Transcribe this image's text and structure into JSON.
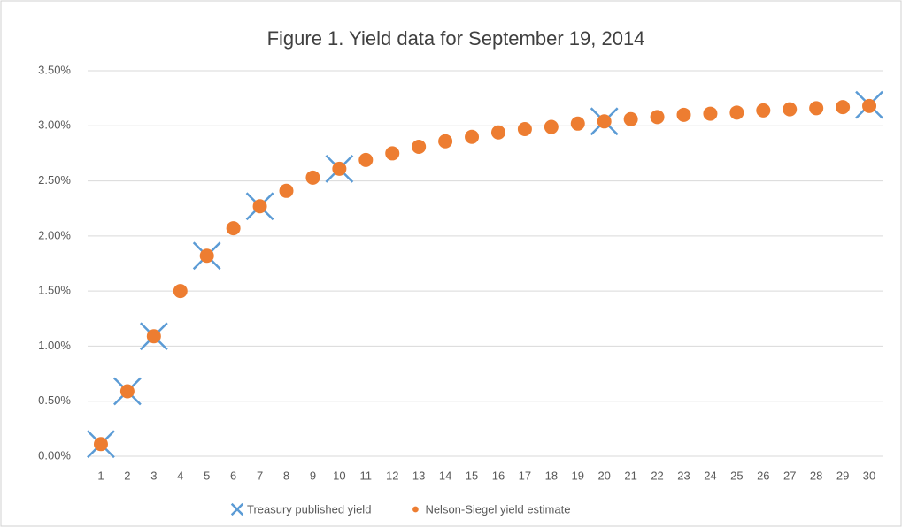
{
  "chart_data": {
    "type": "scatter",
    "title": "Figure 1. Yield data for September 19, 2014",
    "categories": [
      "1",
      "2",
      "3",
      "4",
      "5",
      "6",
      "7",
      "8",
      "9",
      "10",
      "11",
      "12",
      "13",
      "14",
      "15",
      "16",
      "17",
      "18",
      "19",
      "20",
      "21",
      "22",
      "23",
      "24",
      "25",
      "26",
      "27",
      "28",
      "29",
      "30"
    ],
    "series": [
      {
        "name": "Treasury published yield",
        "color": "#5b9bd5",
        "marker": "x",
        "values": [
          0.11,
          0.59,
          1.09,
          null,
          1.82,
          null,
          2.27,
          null,
          null,
          2.61,
          null,
          null,
          null,
          null,
          null,
          null,
          null,
          null,
          null,
          3.04,
          null,
          null,
          null,
          null,
          null,
          null,
          null,
          null,
          null,
          3.19
        ]
      },
      {
        "name": "Nelson-Siegel yield estimate",
        "color": "#ed7d31",
        "marker": "circle",
        "values": [
          0.11,
          0.59,
          1.09,
          1.5,
          1.82,
          2.07,
          2.27,
          2.41,
          2.53,
          2.61,
          2.69,
          2.75,
          2.81,
          2.86,
          2.9,
          2.94,
          2.97,
          2.99,
          3.02,
          3.04,
          3.06,
          3.08,
          3.1,
          3.11,
          3.12,
          3.14,
          3.15,
          3.16,
          3.17,
          3.18
        ]
      }
    ],
    "ylim": [
      0,
      3.5
    ],
    "yticks": [
      {
        "value": 0,
        "label": "0.00%"
      },
      {
        "value": 0.5,
        "label": "0.50%"
      },
      {
        "value": 1,
        "label": "1.00%"
      },
      {
        "value": 1.5,
        "label": "1.50%"
      },
      {
        "value": 2,
        "label": "2.00%"
      },
      {
        "value": 2.5,
        "label": "2.50%"
      },
      {
        "value": 3,
        "label": "3.00%"
      },
      {
        "value": 3.5,
        "label": "3.50%"
      }
    ],
    "grid": true,
    "legend": "bottom"
  }
}
